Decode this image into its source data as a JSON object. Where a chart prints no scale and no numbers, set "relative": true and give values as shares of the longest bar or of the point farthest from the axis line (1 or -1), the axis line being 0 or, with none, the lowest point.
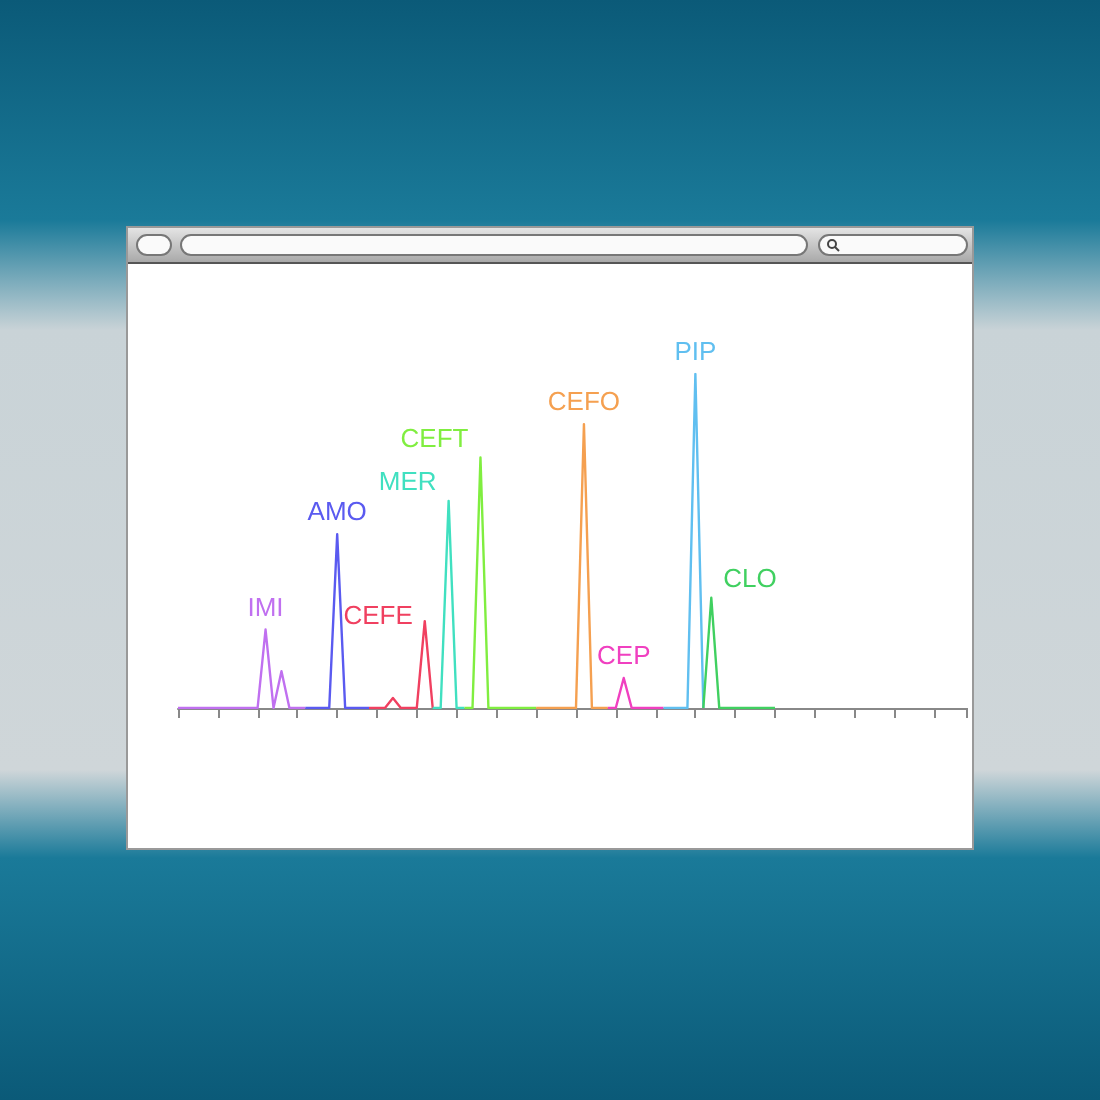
{
  "chart_data": {
    "type": "line",
    "relative": true,
    "grid": false,
    "legend": false,
    "marker": "none",
    "line_style": "solid",
    "categories": [
      null,
      null,
      null,
      null,
      null,
      null,
      null,
      null,
      null,
      null,
      null,
      null,
      null,
      null,
      null,
      null,
      null,
      null,
      null,
      null,
      null,
      null,
      null,
      null,
      null,
      null,
      null,
      null,
      null,
      null,
      null,
      null,
      null,
      null,
      null,
      null,
      null,
      null,
      null,
      null,
      null,
      null,
      null,
      null,
      null,
      null,
      null,
      null,
      null,
      null,
      null,
      null,
      null,
      null,
      null,
      null,
      null,
      null,
      null,
      null,
      null,
      null,
      null,
      null,
      null,
      null,
      null,
      null,
      null,
      null,
      null,
      null,
      null,
      null,
      null,
      null,
      null,
      null,
      null,
      null,
      null,
      null,
      null,
      null,
      null,
      null,
      null,
      null,
      null,
      null,
      null,
      null,
      null,
      null,
      null,
      null,
      null,
      null,
      null,
      null
    ],
    "series": [
      {
        "name": "IMI",
        "color": "#c070f0",
        "values": [
          0,
          0,
          0,
          0,
          0,
          0,
          0,
          0,
          0,
          0,
          0,
          0.235,
          0,
          0.11,
          0,
          0,
          0,
          null,
          null,
          null,
          null,
          null,
          null,
          null,
          null,
          null,
          null,
          null,
          null,
          null,
          null,
          null,
          null,
          null,
          null,
          null,
          null,
          null,
          null,
          null,
          null,
          null,
          null,
          null,
          null,
          null,
          null,
          null,
          null,
          null,
          null,
          null,
          null,
          null,
          null,
          null,
          null,
          null,
          null,
          null,
          null,
          null,
          null,
          null,
          null,
          null,
          null,
          null,
          null,
          null,
          null,
          null,
          null,
          null,
          null,
          null,
          null,
          null,
          null,
          null,
          null,
          null,
          null,
          null,
          null,
          null,
          null,
          null,
          null,
          null,
          null,
          null,
          null,
          null,
          null,
          null,
          null,
          null,
          null,
          null
        ]
      },
      {
        "name": "AMO",
        "color": "#5a5af0",
        "values": [
          null,
          null,
          null,
          null,
          null,
          null,
          null,
          null,
          null,
          null,
          null,
          null,
          null,
          null,
          null,
          null,
          0,
          0,
          0,
          0,
          0.52,
          0,
          0,
          0,
          0,
          null,
          null,
          null,
          null,
          null,
          null,
          null,
          null,
          null,
          null,
          null,
          null,
          null,
          null,
          null,
          null,
          null,
          null,
          null,
          null,
          null,
          null,
          null,
          null,
          null,
          null,
          null,
          null,
          null,
          null,
          null,
          null,
          null,
          null,
          null,
          null,
          null,
          null,
          null,
          null,
          null,
          null,
          null,
          null,
          null,
          null,
          null,
          null,
          null,
          null,
          null,
          null,
          null,
          null,
          null,
          null,
          null,
          null,
          null,
          null,
          null,
          null,
          null,
          null,
          null,
          null,
          null,
          null,
          null,
          null,
          null,
          null,
          null,
          null,
          null
        ]
      },
      {
        "name": "CEFE",
        "color": "#f04060",
        "values": [
          null,
          null,
          null,
          null,
          null,
          null,
          null,
          null,
          null,
          null,
          null,
          null,
          null,
          null,
          null,
          null,
          null,
          null,
          null,
          null,
          null,
          null,
          null,
          null,
          0,
          0,
          0,
          0.03,
          0,
          0,
          0,
          0.26,
          0,
          null,
          null,
          null,
          null,
          null,
          null,
          null,
          null,
          null,
          null,
          null,
          null,
          null,
          null,
          null,
          null,
          null,
          null,
          null,
          null,
          null,
          null,
          null,
          null,
          null,
          null,
          null,
          null,
          null,
          null,
          null,
          null,
          null,
          null,
          null,
          null,
          null,
          null,
          null,
          null,
          null,
          null,
          null,
          null,
          null,
          null,
          null,
          null,
          null,
          null,
          null,
          null,
          null,
          null,
          null,
          null,
          null,
          null,
          null,
          null,
          null,
          null,
          null,
          null,
          null,
          null,
          null
        ]
      },
      {
        "name": "MER",
        "color": "#40e0c0",
        "values": [
          null,
          null,
          null,
          null,
          null,
          null,
          null,
          null,
          null,
          null,
          null,
          null,
          null,
          null,
          null,
          null,
          null,
          null,
          null,
          null,
          null,
          null,
          null,
          null,
          null,
          null,
          null,
          null,
          null,
          null,
          null,
          null,
          0,
          0,
          0.62,
          0,
          0,
          null,
          null,
          null,
          null,
          null,
          null,
          null,
          null,
          null,
          null,
          null,
          null,
          null,
          null,
          null,
          null,
          null,
          null,
          null,
          null,
          null,
          null,
          null,
          null,
          null,
          null,
          null,
          null,
          null,
          null,
          null,
          null,
          null,
          null,
          null,
          null,
          null,
          null,
          null,
          null,
          null,
          null,
          null,
          null,
          null,
          null,
          null,
          null,
          null,
          null,
          null,
          null,
          null,
          null,
          null,
          null,
          null,
          null,
          null,
          null,
          null,
          null,
          null
        ]
      },
      {
        "name": "CEFT",
        "color": "#80ee40",
        "values": [
          null,
          null,
          null,
          null,
          null,
          null,
          null,
          null,
          null,
          null,
          null,
          null,
          null,
          null,
          null,
          null,
          null,
          null,
          null,
          null,
          null,
          null,
          null,
          null,
          null,
          null,
          null,
          null,
          null,
          null,
          null,
          null,
          null,
          null,
          null,
          null,
          0,
          0,
          0.75,
          0,
          0,
          0,
          0,
          0,
          0,
          0,
          null,
          null,
          null,
          null,
          null,
          null,
          null,
          null,
          null,
          null,
          null,
          null,
          null,
          null,
          null,
          null,
          null,
          null,
          null,
          null,
          null,
          null,
          null,
          null,
          null,
          null,
          null,
          null,
          null,
          null,
          null,
          null,
          null,
          null,
          null,
          null,
          null,
          null,
          null,
          null,
          null,
          null,
          null,
          null,
          null,
          null,
          null,
          null,
          null,
          null,
          null,
          null,
          null,
          null
        ]
      },
      {
        "name": "CEFO",
        "color": "#f5a050",
        "values": [
          null,
          null,
          null,
          null,
          null,
          null,
          null,
          null,
          null,
          null,
          null,
          null,
          null,
          null,
          null,
          null,
          null,
          null,
          null,
          null,
          null,
          null,
          null,
          null,
          null,
          null,
          null,
          null,
          null,
          null,
          null,
          null,
          null,
          null,
          null,
          null,
          null,
          null,
          null,
          null,
          null,
          null,
          null,
          null,
          null,
          0,
          0,
          0,
          0,
          0,
          0,
          0.85,
          0,
          0,
          0,
          null,
          null,
          null,
          null,
          null,
          null,
          null,
          null,
          null,
          null,
          null,
          null,
          null,
          null,
          null,
          null,
          null,
          null,
          null,
          null,
          null,
          null,
          null,
          null,
          null,
          null,
          null,
          null,
          null,
          null,
          null,
          null,
          null,
          null,
          null,
          null,
          null,
          null,
          null,
          null,
          null,
          null,
          null,
          null,
          null
        ]
      },
      {
        "name": "CEP",
        "color": "#f040c0",
        "values": [
          null,
          null,
          null,
          null,
          null,
          null,
          null,
          null,
          null,
          null,
          null,
          null,
          null,
          null,
          null,
          null,
          null,
          null,
          null,
          null,
          null,
          null,
          null,
          null,
          null,
          null,
          null,
          null,
          null,
          null,
          null,
          null,
          null,
          null,
          null,
          null,
          null,
          null,
          null,
          null,
          null,
          null,
          null,
          null,
          null,
          null,
          null,
          null,
          null,
          null,
          null,
          null,
          null,
          null,
          0,
          0,
          0.09,
          0,
          0,
          0,
          0,
          0,
          null,
          null,
          null,
          null,
          null,
          null,
          null,
          null,
          null,
          null,
          null,
          null,
          null,
          null,
          null,
          null,
          null,
          null,
          null,
          null,
          null,
          null,
          null,
          null,
          null,
          null,
          null,
          null,
          null,
          null,
          null,
          null,
          null,
          null,
          null,
          null,
          null,
          null
        ]
      },
      {
        "name": "PIP",
        "color": "#60bff0",
        "values": [
          null,
          null,
          null,
          null,
          null,
          null,
          null,
          null,
          null,
          null,
          null,
          null,
          null,
          null,
          null,
          null,
          null,
          null,
          null,
          null,
          null,
          null,
          null,
          null,
          null,
          null,
          null,
          null,
          null,
          null,
          null,
          null,
          null,
          null,
          null,
          null,
          null,
          null,
          null,
          null,
          null,
          null,
          null,
          null,
          null,
          null,
          null,
          null,
          null,
          null,
          null,
          null,
          null,
          null,
          null,
          null,
          null,
          null,
          null,
          null,
          null,
          0,
          0,
          0,
          0,
          1,
          0,
          null,
          null,
          null,
          null,
          null,
          null,
          null,
          null,
          null,
          null,
          null,
          null,
          null,
          null,
          null,
          null,
          null,
          null,
          null,
          null,
          null,
          null,
          null,
          null,
          null,
          null,
          null,
          null,
          null,
          null,
          null,
          null,
          null
        ]
      },
      {
        "name": "CLO",
        "color": "#40d060",
        "values": [
          null,
          null,
          null,
          null,
          null,
          null,
          null,
          null,
          null,
          null,
          null,
          null,
          null,
          null,
          null,
          null,
          null,
          null,
          null,
          null,
          null,
          null,
          null,
          null,
          null,
          null,
          null,
          null,
          null,
          null,
          null,
          null,
          null,
          null,
          null,
          null,
          null,
          null,
          null,
          null,
          null,
          null,
          null,
          null,
          null,
          null,
          null,
          null,
          null,
          null,
          null,
          null,
          null,
          null,
          null,
          null,
          null,
          null,
          null,
          null,
          null,
          null,
          null,
          null,
          null,
          null,
          0,
          0.33,
          0,
          0,
          0,
          0,
          0,
          0,
          0,
          0,
          null,
          null,
          null,
          null,
          null,
          null,
          null,
          null,
          null,
          null,
          null,
          null,
          null,
          null,
          null,
          null,
          null,
          null,
          null,
          null,
          null,
          null,
          null,
          null
        ]
      }
    ]
  }
}
